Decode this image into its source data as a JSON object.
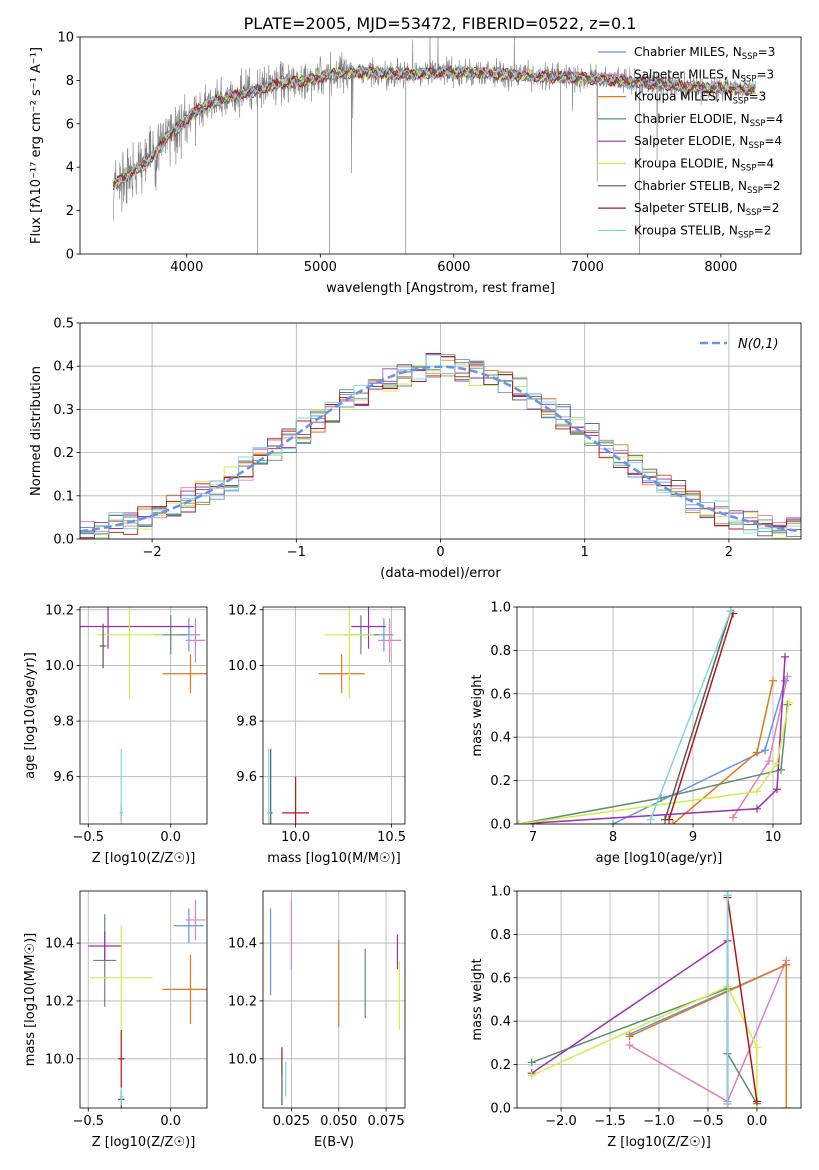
{
  "figure": {
    "title": "PLATE=2005, MJD=53472, FIBERID=0522, z=0.1",
    "colors": {
      "grey": "#7f7f7f",
      "blue": "#6495ed",
      "orange": "#e07a1a",
      "green": "#5f8f6f",
      "purple": "#9b30b0",
      "yellow": "#d4ec4a",
      "pink": "#e27fb9",
      "darkgrey": "#5a5a5a",
      "red": "#b01818",
      "cyan": "#7fd8df"
    }
  },
  "chart_data": [
    {
      "id": "spectrum",
      "type": "line",
      "title": "PLATE=2005, MJD=53472, FIBERID=0522, z=0.1",
      "xlabel": "wavelength [Angstrom, rest frame]",
      "ylabel": "Flux [fλ10⁻¹⁷ erg cm⁻² s⁻¹ A⁻¹]",
      "xlim": [
        3200,
        8600
      ],
      "ylim": [
        0,
        10
      ],
      "xticks": [
        4000,
        5000,
        6000,
        7000,
        8000
      ],
      "yticks": [
        0,
        2,
        4,
        6,
        8,
        10
      ],
      "grid": false,
      "legend_position": "right",
      "data_series": {
        "name": "",
        "color": "#7f7f7f"
      },
      "continuum": {
        "x": [
          3450,
          3550,
          3650,
          3750,
          3850,
          3950,
          4050,
          4150,
          4300,
          4500,
          4700,
          4900,
          5100,
          5300,
          5500,
          5700,
          6000,
          6300,
          6600,
          7000,
          7400,
          7800,
          8200
        ],
        "y": [
          3.2,
          3.6,
          4.0,
          4.5,
          5.4,
          5.9,
          6.5,
          6.9,
          7.2,
          7.5,
          7.9,
          8.0,
          8.3,
          8.4,
          8.3,
          8.3,
          8.4,
          8.3,
          8.2,
          8.1,
          7.9,
          7.7,
          7.6
        ]
      },
      "model_series": [
        {
          "name": "Chabrier MILES, N_SSP=3",
          "label": "Chabrier MILES, N",
          "sub": "SSP",
          "n": "=3",
          "color": "#6495ed"
        },
        {
          "name": "Salpeter MILES, N_SSP=3",
          "label": "Salpeter MILES, N",
          "sub": "SSP",
          "n": "=3",
          "color": "#e27fb9"
        },
        {
          "name": "Kroupa MILES, N_SSP=3",
          "label": "Kroupa MILES, N",
          "sub": "SSP",
          "n": "=3",
          "color": "#e07a1a"
        },
        {
          "name": "Chabrier ELODIE, N_SSP=4",
          "label": "Chabrier ELODIE, N",
          "sub": "SSP",
          "n": "=4",
          "color": "#5f8f6f"
        },
        {
          "name": "Salpeter ELODIE, N_SSP=4",
          "label": "Salpeter ELODIE, N",
          "sub": "SSP",
          "n": "=4",
          "color": "#9b30b0"
        },
        {
          "name": "Kroupa ELODIE, N_SSP=4",
          "label": "Kroupa ELODIE, N",
          "sub": "SSP",
          "n": "=4",
          "color": "#d4ec4a"
        },
        {
          "name": "Chabrier STELIB, N_SSP=2",
          "label": "Chabrier STELIB, N",
          "sub": "SSP",
          "n": "=2",
          "color": "#5a5a5a"
        },
        {
          "name": "Salpeter STELIB, N_SSP=2",
          "label": "Salpeter STELIB, N",
          "sub": "SSP",
          "n": "=2",
          "color": "#b01818"
        },
        {
          "name": "Kroupa STELIB, N_SSP=2",
          "label": "Kroupa STELIB, N",
          "sub": "SSP",
          "n": "=2",
          "color": "#7fd8df"
        }
      ]
    },
    {
      "id": "residuals",
      "type": "line",
      "xlabel": "(data-model)/error",
      "ylabel": "Normed distribution",
      "xlim": [
        -2.5,
        2.5
      ],
      "ylim": [
        0,
        0.5
      ],
      "xticks": [
        -2,
        -1,
        0,
        1,
        2
      ],
      "yticks": [
        0.0,
        0.1,
        0.2,
        0.3,
        0.4,
        0.5
      ],
      "grid": true,
      "legend_position": "top-right",
      "reference": {
        "name": "N(0,1)",
        "color": "#6495ed"
      },
      "bin_width": 0.1,
      "histogram_envelope": {
        "x": [
          -2.45,
          -2.0,
          -1.5,
          -1.0,
          -0.5,
          0.0,
          0.5,
          1.0,
          1.5,
          2.0,
          2.45
        ],
        "y": [
          0.02,
          0.05,
          0.13,
          0.24,
          0.35,
          0.41,
          0.36,
          0.25,
          0.13,
          0.05,
          0.02
        ]
      }
    },
    {
      "id": "age_vs_Z",
      "type": "scatter",
      "xlabel": "Z [log10(Z/Z☉)]",
      "ylabel": "age  [log10(age/yr)]",
      "xlim": [
        -0.55,
        0.22
      ],
      "ylim": [
        9.43,
        10.21
      ],
      "xticks": [
        -0.5,
        0.0
      ],
      "yticks": [
        9.6,
        9.8,
        10.0,
        10.2
      ],
      "grid": true,
      "points": [
        {
          "x": 0.11,
          "xerr": 0.07,
          "y": 10.11,
          "yerr": 0.06,
          "color": "#6495ed"
        },
        {
          "x": 0.15,
          "xerr": 0.06,
          "y": 10.09,
          "yerr": 0.08,
          "color": "#e27fb9"
        },
        {
          "x": 0.12,
          "xerr": 0.17,
          "y": 9.97,
          "yerr": 0.07,
          "color": "#e07a1a"
        },
        {
          "x": 0.0,
          "xerr": 0.1,
          "y": 10.11,
          "yerr": 0.07,
          "color": "#5f8f6f"
        },
        {
          "x": -0.38,
          "xerr": 0.52,
          "y": 10.14,
          "yerr": 0.08,
          "color": "#9b30b0"
        },
        {
          "x": -0.25,
          "xerr": 0.2,
          "y": 10.11,
          "yerr": 0.23,
          "color": "#d4ec4a"
        },
        {
          "x": -0.41,
          "xerr": 0.02,
          "y": 10.07,
          "yerr": 0.08,
          "color": "#5a5a5a"
        },
        {
          "x": -0.3,
          "xerr": 0.01,
          "y": 9.47,
          "yerr": 0.03,
          "color": "#7f7f7f"
        },
        {
          "x": -0.3,
          "xerr": 0.01,
          "y": 9.47,
          "yerr": 0.23,
          "color": "#7fd8df"
        }
      ]
    },
    {
      "id": "age_vs_mass",
      "type": "scatter",
      "xlabel": "mass [log10(M/M☉)]",
      "xlim": [
        9.83,
        10.57
      ],
      "ylim": [
        9.43,
        10.21
      ],
      "xticks": [
        10.0,
        10.5
      ],
      "yticks": [
        9.6,
        9.8,
        10.0,
        10.2
      ],
      "grid": true,
      "points": [
        {
          "x": 10.46,
          "xerr": 0.05,
          "y": 10.11,
          "yerr": 0.06,
          "color": "#6495ed"
        },
        {
          "x": 10.49,
          "xerr": 0.06,
          "y": 10.09,
          "yerr": 0.08,
          "color": "#e27fb9"
        },
        {
          "x": 10.24,
          "xerr": 0.12,
          "y": 9.97,
          "yerr": 0.07,
          "color": "#e07a1a"
        },
        {
          "x": 10.34,
          "xerr": 0.09,
          "y": 10.11,
          "yerr": 0.07,
          "color": "#5f8f6f"
        },
        {
          "x": 10.38,
          "xerr": 0.09,
          "y": 10.14,
          "yerr": 0.08,
          "color": "#9b30b0"
        },
        {
          "x": 10.28,
          "xerr": 0.13,
          "y": 10.11,
          "yerr": 0.23,
          "color": "#d4ec4a"
        },
        {
          "x": 10.0,
          "xerr": 0.07,
          "y": 9.47,
          "yerr": 0.13,
          "color": "#b01818"
        },
        {
          "x": 9.87,
          "xerr": 0.01,
          "y": 9.47,
          "yerr": 0.23,
          "color": "#5a5a5a"
        },
        {
          "x": 9.86,
          "xerr": 0.01,
          "y": 9.47,
          "yerr": 0.23,
          "color": "#7fd8df"
        }
      ]
    },
    {
      "id": "weight_vs_age",
      "type": "line",
      "xlabel": "age  [log10(age/yr)]",
      "ylabel": "mass weight",
      "xlim": [
        6.8,
        10.35
      ],
      "ylim": [
        0,
        1
      ],
      "xticks": [
        7,
        8,
        9,
        10
      ],
      "yticks": [
        0.0,
        0.2,
        0.4,
        0.6,
        0.8,
        1.0
      ],
      "grid": true,
      "series": [
        {
          "name": "Chabrier MILES",
          "color": "#6495ed",
          "x": [
            8.0,
            9.9,
            10.15
          ],
          "y": [
            0.0,
            0.34,
            0.66
          ]
        },
        {
          "name": "Salpeter MILES",
          "color": "#e27fb9",
          "x": [
            9.5,
            9.95,
            10.18
          ],
          "y": [
            0.03,
            0.29,
            0.68
          ]
        },
        {
          "name": "Kroupa MILES",
          "color": "#e07a1a",
          "x": [
            8.75,
            9.8,
            10.0
          ],
          "y": [
            0.0,
            0.33,
            0.66
          ]
        },
        {
          "name": "Chabrier ELODIE",
          "color": "#5f8f6f",
          "x": [
            6.82,
            8.6,
            10.1,
            10.18
          ],
          "y": [
            0.0,
            0.12,
            0.25,
            0.55
          ]
        },
        {
          "name": "Salpeter ELODIE",
          "color": "#9b30b0",
          "x": [
            6.82,
            9.8,
            10.05,
            10.15
          ],
          "y": [
            0.0,
            0.07,
            0.16,
            0.77
          ]
        },
        {
          "name": "Kroupa ELODIE",
          "color": "#d4ec4a",
          "x": [
            6.82,
            9.8,
            10.05,
            10.2
          ],
          "y": [
            0.0,
            0.15,
            0.28,
            0.56
          ]
        },
        {
          "name": "Chabrier STELIB",
          "color": "#5a5a5a",
          "x": [
            8.65,
            9.47
          ],
          "y": [
            0.02,
            0.98
          ]
        },
        {
          "name": "Salpeter STELIB",
          "color": "#b01818",
          "x": [
            8.7,
            9.5
          ],
          "y": [
            0.02,
            0.97
          ]
        },
        {
          "name": "Kroupa STELIB",
          "color": "#7fd8df",
          "x": [
            8.47,
            9.47
          ],
          "y": [
            0.02,
            0.98
          ]
        }
      ]
    },
    {
      "id": "mass_vs_Z",
      "type": "scatter",
      "ylabel": "mass [log10(M/M☉)]",
      "xlabel": "Z [log10(Z/Z☉)]",
      "xlim": [
        -0.55,
        0.22
      ],
      "ylim": [
        9.83,
        10.58
      ],
      "xticks": [
        -0.5,
        0.0
      ],
      "yticks": [
        10.0,
        10.2,
        10.4
      ],
      "grid": true,
      "points": [
        {
          "x": 0.11,
          "xerr": 0.09,
          "y": 10.46,
          "yerr": 0.06,
          "color": "#6495ed"
        },
        {
          "x": 0.15,
          "xerr": 0.06,
          "y": 10.48,
          "yerr": 0.07,
          "color": "#e27fb9"
        },
        {
          "x": 0.12,
          "xerr": 0.17,
          "y": 10.24,
          "yerr": 0.12,
          "color": "#e07a1a"
        },
        {
          "x": -0.4,
          "xerr": 0.07,
          "y": 10.34,
          "yerr": 0.16,
          "color": "#5f8f6f"
        },
        {
          "x": -0.4,
          "xerr": 0.1,
          "y": 10.39,
          "yerr": 0.05,
          "color": "#9b30b0"
        },
        {
          "x": -0.3,
          "xerr": 0.19,
          "y": 10.28,
          "yerr": 0.18,
          "color": "#d4ec4a"
        },
        {
          "x": -0.3,
          "xerr": 0.02,
          "y": 10.0,
          "yerr": 0.1,
          "color": "#b01818"
        },
        {
          "x": -0.3,
          "xerr": 0.02,
          "y": 9.86,
          "yerr": 0.03,
          "color": "#5a5a5a"
        },
        {
          "x": -0.3,
          "xerr": 0.01,
          "y": 9.87,
          "yerr": 0.03,
          "color": "#7fd8df"
        }
      ]
    },
    {
      "id": "mass_vs_EBV",
      "type": "scatter",
      "xlabel": "E(B-V)",
      "xlim": [
        0.01,
        0.085
      ],
      "ylim": [
        9.83,
        10.58
      ],
      "xticks": [
        0.025,
        0.05,
        0.075
      ],
      "xticklabels": [
        "0.025",
        "0.050",
        "0.075"
      ],
      "yticks": [
        10.0,
        10.2,
        10.4
      ],
      "grid": true,
      "points": [
        {
          "x": 0.014,
          "y": 10.37,
          "yerr": 0.15,
          "color": "#6495ed"
        },
        {
          "x": 0.025,
          "y": 10.43,
          "yerr": 0.12,
          "color": "#e27fb9"
        },
        {
          "x": 0.05,
          "y": 10.26,
          "yerr": 0.15,
          "color": "#e07a1a"
        },
        {
          "x": 0.064,
          "y": 10.26,
          "yerr": 0.12,
          "color": "#5f8f6f"
        },
        {
          "x": 0.081,
          "y": 10.37,
          "yerr": 0.06,
          "color": "#9b30b0"
        },
        {
          "x": 0.082,
          "y": 10.22,
          "yerr": 0.12,
          "color": "#d4ec4a"
        },
        {
          "x": 0.02,
          "y": 9.99,
          "yerr": 0.05,
          "color": "#b01818"
        },
        {
          "x": 0.02,
          "y": 9.92,
          "yerr": 0.08,
          "color": "#5a5a5a"
        },
        {
          "x": 0.022,
          "y": 9.93,
          "yerr": 0.06,
          "color": "#7fd8df"
        }
      ]
    },
    {
      "id": "weight_vs_Z",
      "type": "line",
      "xlabel": "Z [log10(Z/Z☉)]",
      "ylabel": "mass weight",
      "xlim": [
        -2.45,
        0.45
      ],
      "ylim": [
        0,
        1
      ],
      "xticks": [
        -2.0,
        -1.5,
        -1.0,
        -0.5,
        0.0
      ],
      "yticks": [
        0.0,
        0.2,
        0.4,
        0.6,
        0.8,
        1.0
      ],
      "grid": true,
      "series": [
        {
          "name": "Chabrier MILES",
          "color": "#6495ed",
          "x": [
            -1.3,
            0.3
          ],
          "y": [
            0.34,
            0.66
          ]
        },
        {
          "name": "Salpeter MILES",
          "color": "#e27fb9",
          "x": [
            -1.3,
            -0.3,
            0.3
          ],
          "y": [
            0.29,
            0.03,
            0.68
          ]
        },
        {
          "name": "Kroupa MILES",
          "color": "#e07a1a",
          "x": [
            -1.3,
            0.3,
            0.3
          ],
          "y": [
            0.33,
            0.66,
            0.0
          ]
        },
        {
          "name": "Chabrier ELODIE",
          "color": "#5f8f6f",
          "x": [
            -2.3,
            -0.3,
            -0.3,
            0.0
          ],
          "y": [
            0.21,
            0.55,
            0.25,
            0.02
          ]
        },
        {
          "name": "Salpeter ELODIE",
          "color": "#9b30b0",
          "x": [
            -2.3,
            -0.3,
            -0.3
          ],
          "y": [
            0.16,
            0.77,
            0.02
          ]
        },
        {
          "name": "Kroupa ELODIE",
          "color": "#d4ec4a",
          "x": [
            -2.3,
            -0.3,
            0.0,
            0.0
          ],
          "y": [
            0.15,
            0.56,
            0.28,
            0.0
          ]
        },
        {
          "name": "Chabrier STELIB",
          "color": "#5a5a5a",
          "x": [
            -0.3,
            -0.3
          ],
          "y": [
            0.02,
            0.98
          ]
        },
        {
          "name": "Salpeter STELIB",
          "color": "#b01818",
          "x": [
            -0.3,
            0.0
          ],
          "y": [
            0.97,
            0.03
          ]
        },
        {
          "name": "Kroupa STELIB",
          "color": "#7fd8df",
          "x": [
            -0.3,
            -0.3
          ],
          "y": [
            0.02,
            0.98
          ]
        }
      ]
    }
  ]
}
